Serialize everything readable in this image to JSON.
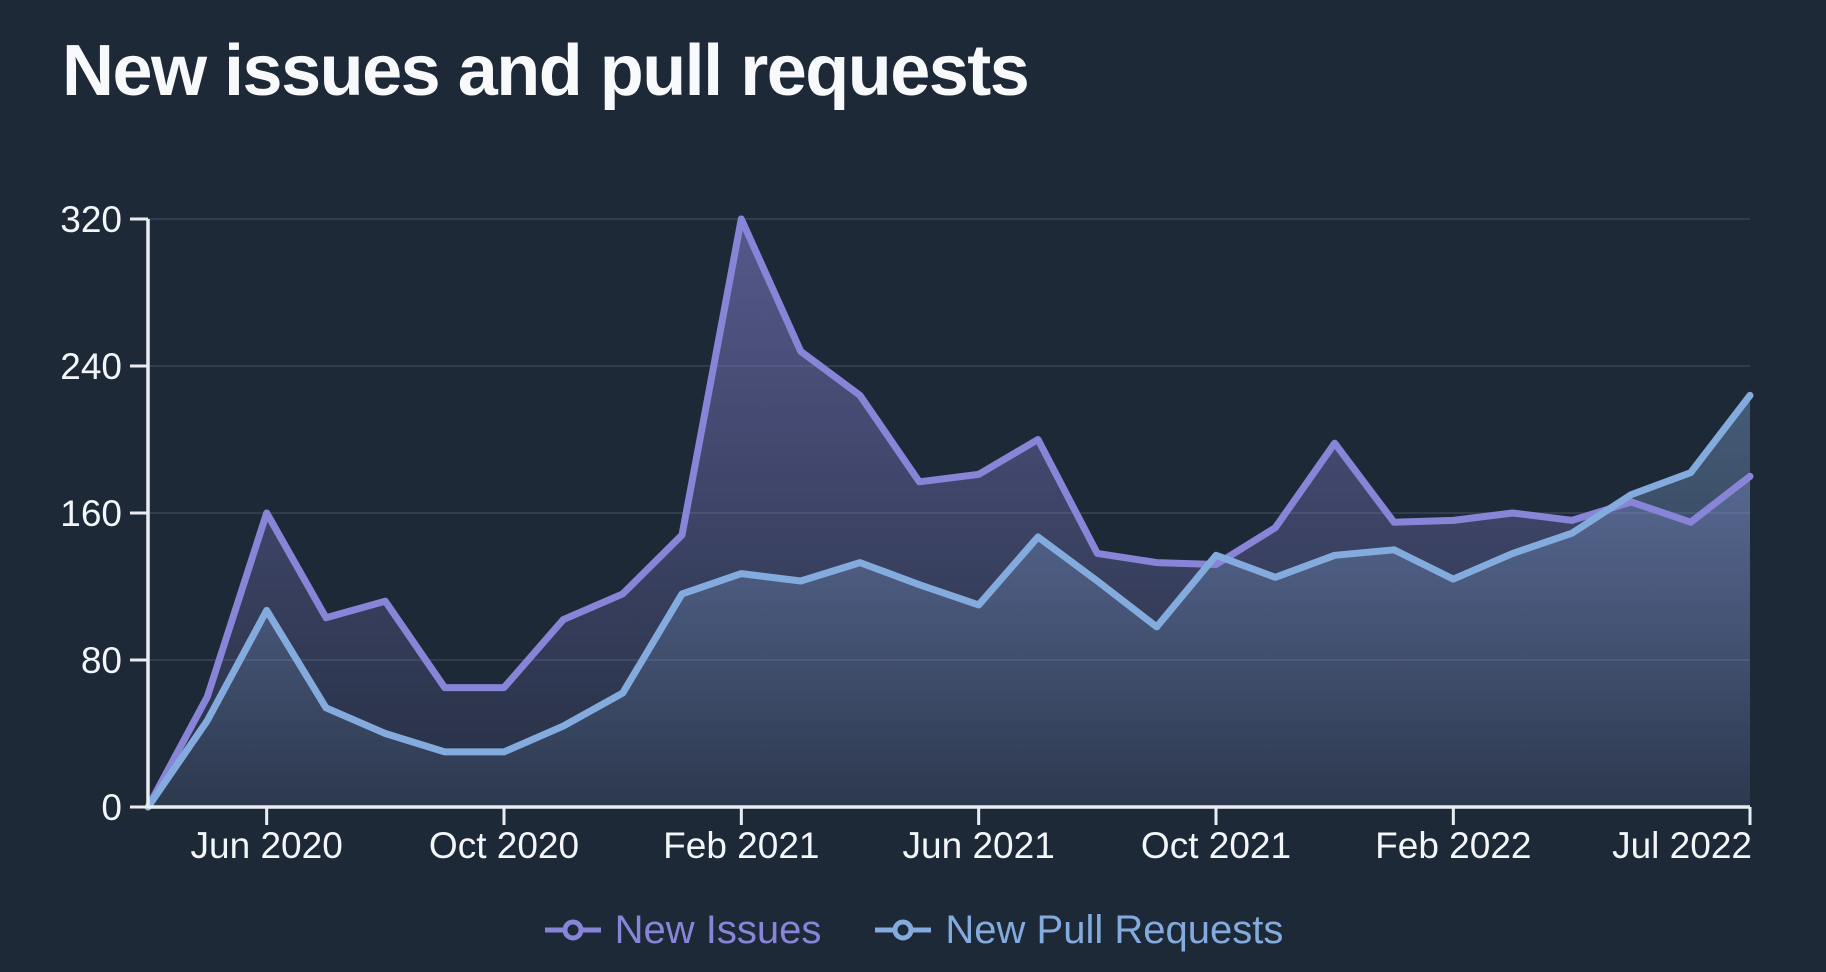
{
  "page": {
    "background": "#1e2937"
  },
  "chart_data": {
    "type": "area",
    "title": "New issues and pull requests",
    "x": [
      "Apr 2020",
      "May 2020",
      "Jun 2020",
      "Jul 2020",
      "Aug 2020",
      "Sep 2020",
      "Oct 2020",
      "Nov 2020",
      "Dec 2020",
      "Jan 2021",
      "Feb 2021",
      "Mar 2021",
      "Apr 2021",
      "May 2021",
      "Jun 2021",
      "Jul 2021",
      "Aug 2021",
      "Sep 2021",
      "Oct 2021",
      "Nov 2021",
      "Dec 2021",
      "Jan 2022",
      "Feb 2022",
      "Mar 2022",
      "Apr 2022",
      "May 2022",
      "Jun 2022",
      "Jul 2022"
    ],
    "series": [
      {
        "name": "New Issues",
        "color": "#8884d8",
        "values": [
          0,
          60,
          160,
          103,
          112,
          65,
          65,
          102,
          116,
          148,
          320,
          248,
          224,
          177,
          181,
          200,
          138,
          133,
          132,
          152,
          198,
          155,
          156,
          160,
          156,
          166,
          155,
          180
        ]
      },
      {
        "name": "New Pull Requests",
        "color": "#84abdd",
        "values": [
          0,
          47,
          107,
          54,
          40,
          30,
          30,
          44,
          62,
          116,
          127,
          123,
          133,
          121,
          110,
          147,
          123,
          98,
          137,
          125,
          137,
          140,
          124,
          138,
          149,
          170,
          182,
          224
        ]
      }
    ],
    "y_ticks": [
      0,
      80,
      160,
      240,
      320
    ],
    "ylim": [
      0,
      320
    ],
    "x_tick_indices": [
      2,
      6,
      10,
      14,
      18,
      22,
      27
    ],
    "x_tick_labels": [
      "Jun 2020",
      "Oct 2020",
      "Feb 2021",
      "Jun 2021",
      "Oct 2021",
      "Feb 2022",
      "Jul 2022"
    ],
    "grid": "horizontal",
    "legend_position": "bottom"
  },
  "colors": {
    "background": "#1e2937",
    "axis": "#e9edf2",
    "text": "#f3f6f9",
    "grid": "rgba(148,163,184,0.16)"
  }
}
